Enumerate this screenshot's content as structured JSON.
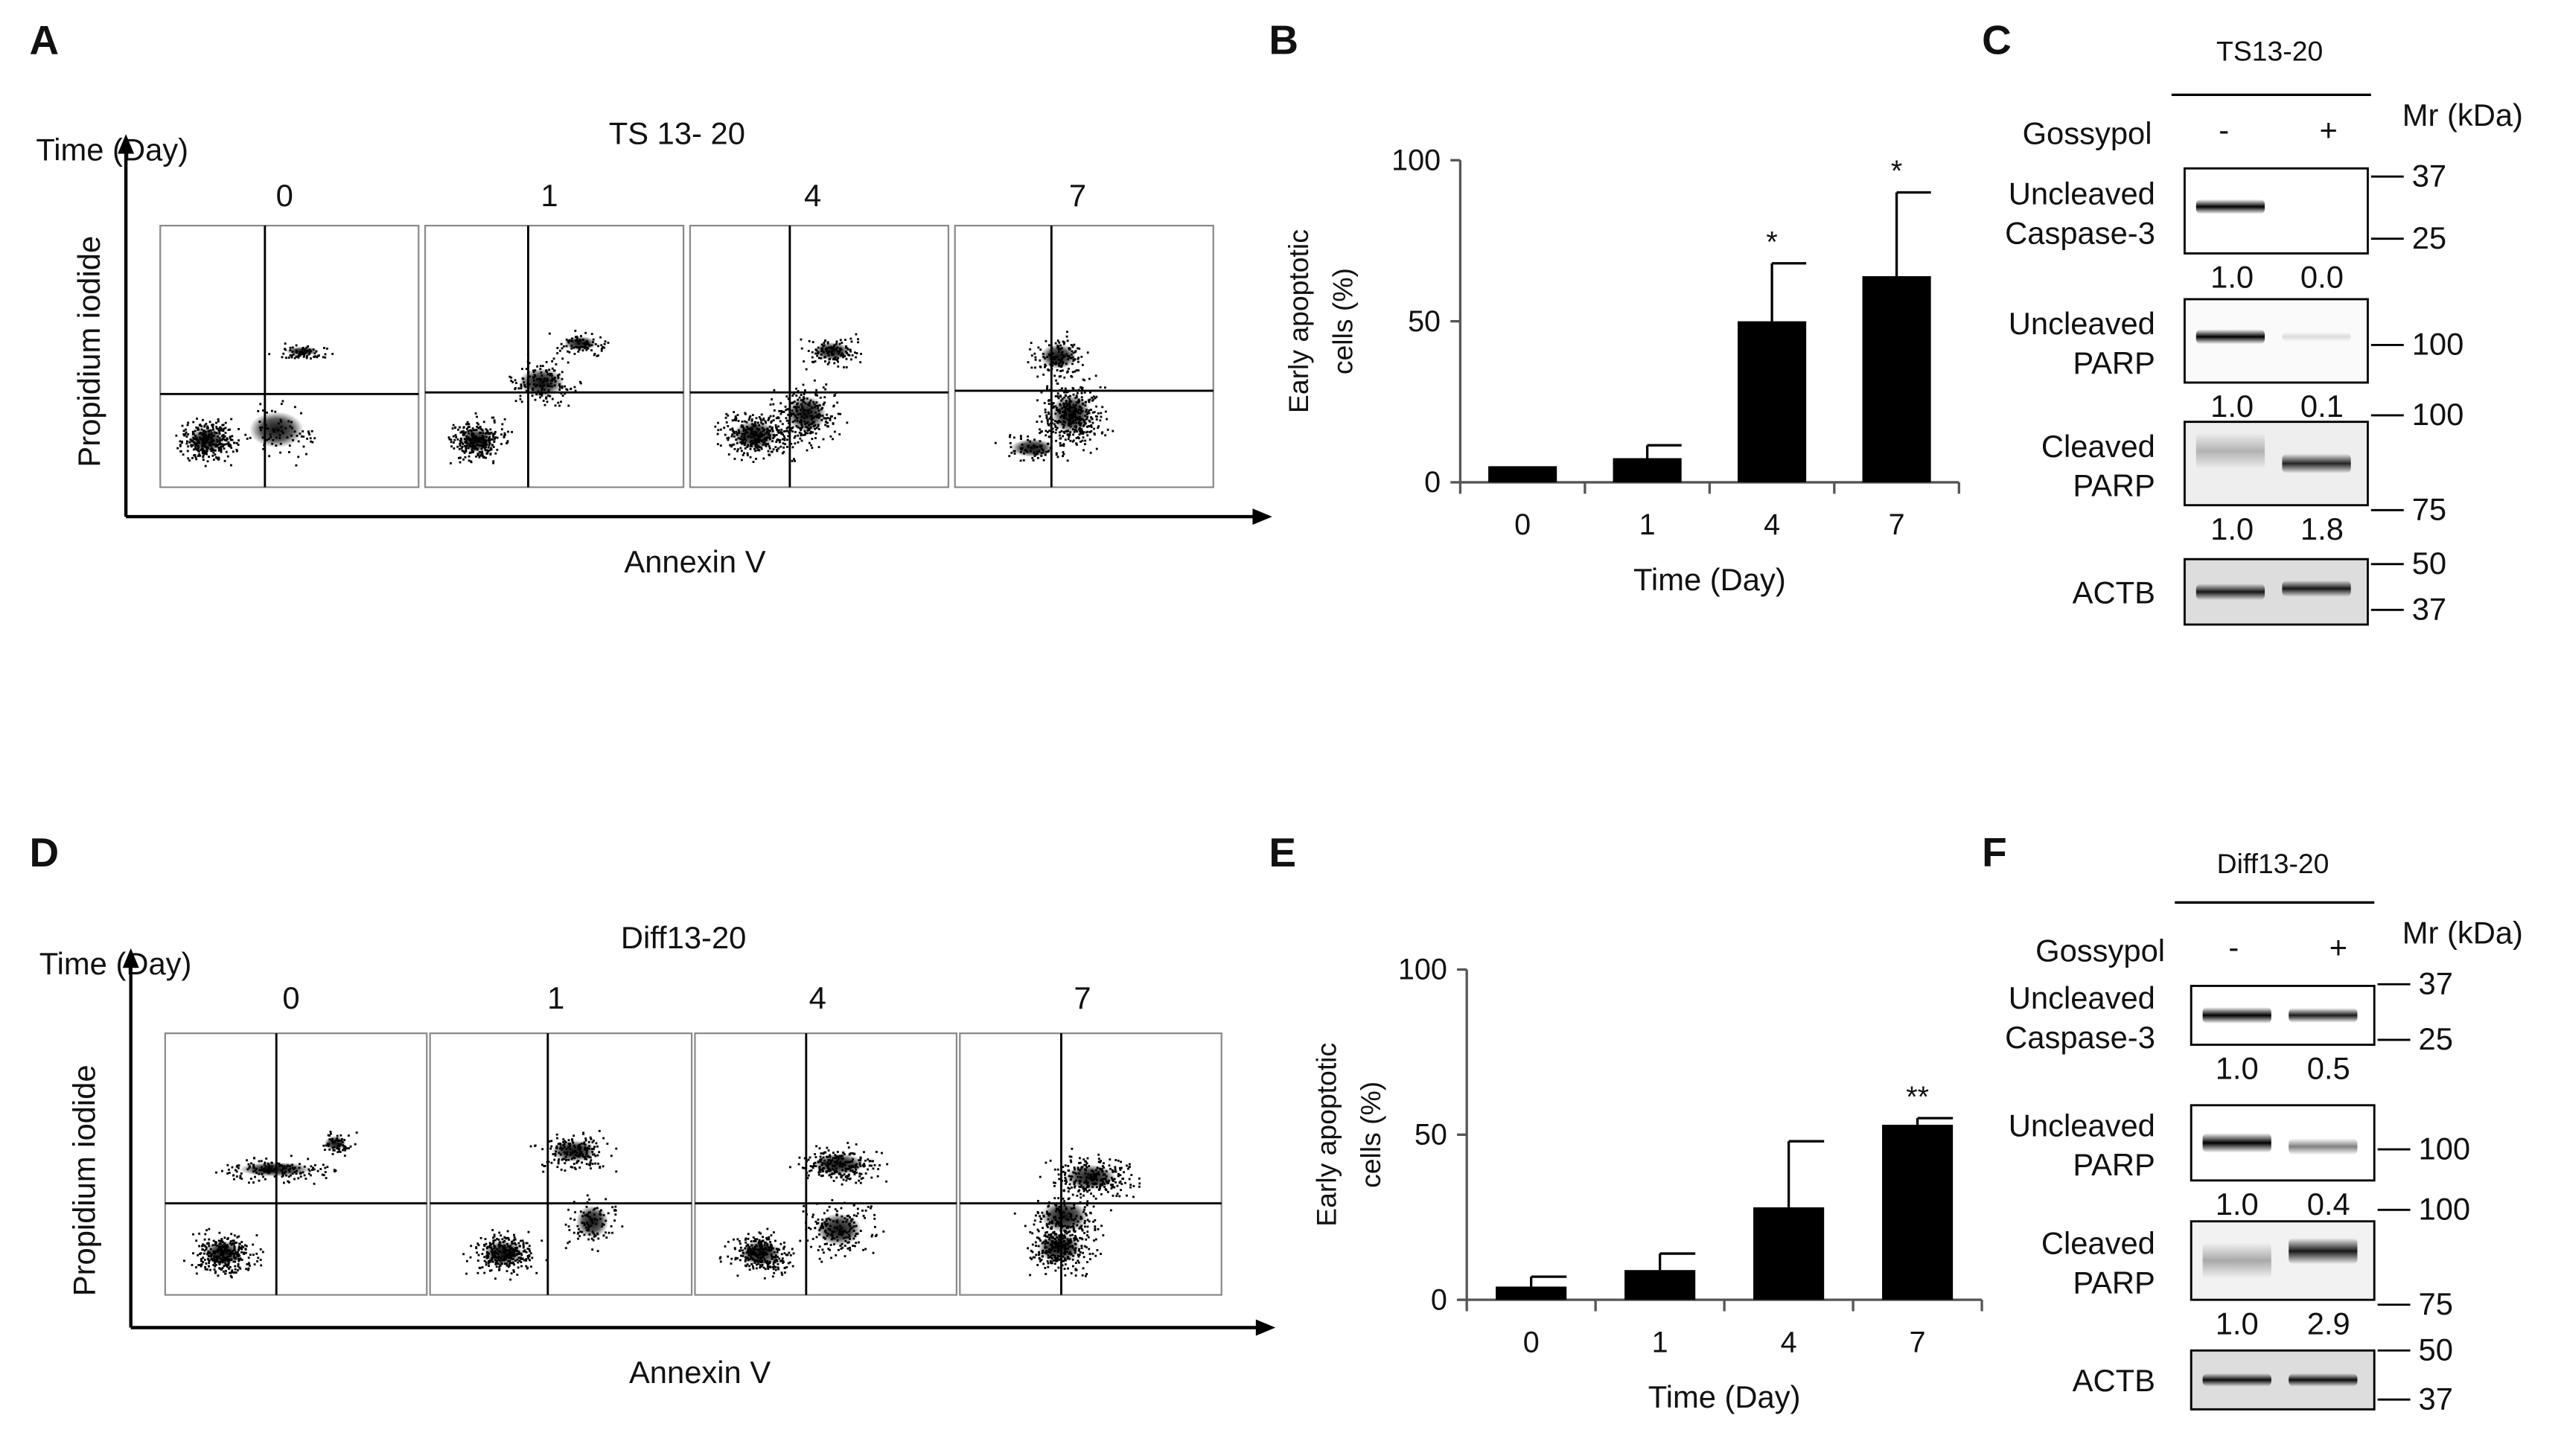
{
  "panels": {
    "A": {
      "letter": "A",
      "title": "TS 13- 20",
      "time_label": "Time (Day)",
      "y_label": "Propidium iodide",
      "x_label": "Annexin V",
      "days": [
        "0",
        "1",
        "4",
        "7"
      ]
    },
    "B": {
      "letter": "B",
      "star_labels": [
        "*",
        "*"
      ]
    },
    "C": {
      "letter": "C",
      "cell_line": "TS13-20",
      "treatment_label": "Gossypol",
      "treatment_states": [
        "-",
        "+"
      ],
      "mr_label": "Mr (kDa)",
      "bands": [
        {
          "label_line1": "Uncleaved",
          "label_line2": "Caspase-3",
          "quant": [
            "1.0",
            "0.0"
          ],
          "markers": [
            "37",
            "25"
          ]
        },
        {
          "label_line1": "Uncleaved",
          "label_line2": "PARP",
          "quant": [
            "1.0",
            "0.1"
          ],
          "markers": [
            "100"
          ]
        },
        {
          "label_line1": "Cleaved",
          "label_line2": "PARP",
          "quant": [
            "1.0",
            "1.8"
          ],
          "markers": [
            "100",
            "75"
          ]
        },
        {
          "label_line1": "ACTB",
          "label_line2": "",
          "quant": [],
          "markers": [
            "50",
            "37"
          ]
        }
      ]
    },
    "D": {
      "letter": "D",
      "title": "Diff13-20",
      "time_label": "Time (Day)",
      "y_label": "Propidium iodide",
      "x_label": "Annexin V",
      "days": [
        "0",
        "1",
        "4",
        "7"
      ]
    },
    "E": {
      "letter": "E",
      "star_labels": [
        "**"
      ]
    },
    "F": {
      "letter": "F",
      "cell_line": "Diff13-20",
      "treatment_label": "Gossypol",
      "treatment_states": [
        "-",
        "+"
      ],
      "mr_label": "Mr (kDa)",
      "bands": [
        {
          "label_line1": "Uncleaved",
          "label_line2": "Caspase-3",
          "quant": [
            "1.0",
            "0.5"
          ],
          "markers": [
            "37",
            "25"
          ]
        },
        {
          "label_line1": "Uncleaved",
          "label_line2": "PARP",
          "quant": [
            "1.0",
            "0.4"
          ],
          "markers": [
            "100"
          ]
        },
        {
          "label_line1": "Cleaved",
          "label_line2": "PARP",
          "quant": [
            "1.0",
            "2.9"
          ],
          "markers": [
            "100",
            "75"
          ]
        },
        {
          "label_line1": "ACTB",
          "label_line2": "",
          "quant": [],
          "markers": [
            "50",
            "37"
          ]
        }
      ]
    }
  },
  "chart_data": [
    {
      "type": "bar",
      "panel": "B",
      "categories": [
        "0",
        "1",
        "4",
        "7"
      ],
      "values": [
        5,
        7.5,
        50,
        64
      ],
      "errors": [
        0,
        4,
        18,
        26
      ],
      "significance": [
        "",
        "",
        "*",
        "*"
      ],
      "xlabel": "Time (Day)",
      "ylabel_line1": "Early apoptotic",
      "ylabel_line2": "cells (%)",
      "ylim": [
        0,
        100
      ],
      "yticks": [
        "0",
        "50",
        "100"
      ],
      "bar_color": "#000000"
    },
    {
      "type": "bar",
      "panel": "E",
      "categories": [
        "0",
        "1",
        "4",
        "7"
      ],
      "values": [
        4,
        9,
        28,
        53
      ],
      "errors": [
        3,
        5,
        20,
        2
      ],
      "significance": [
        "",
        "",
        "",
        "**"
      ],
      "xlabel": "Time (Day)",
      "ylabel_line1": "Early apoptotic",
      "ylabel_line2": "cells (%)",
      "ylim": [
        0,
        100
      ],
      "yticks": [
        "0",
        "50",
        "100"
      ],
      "bar_color": "#000000"
    }
  ]
}
